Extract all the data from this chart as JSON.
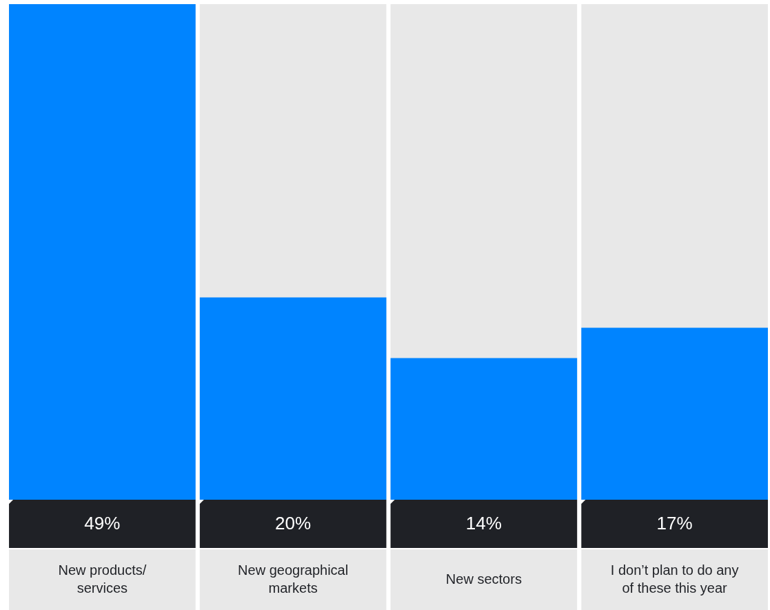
{
  "chart_data": {
    "type": "bar",
    "categories": [
      "New products/ services",
      "New geographical markets",
      "New sectors",
      "I don’t plan to do any of these this year"
    ],
    "values": [
      49,
      20,
      14,
      17
    ],
    "value_labels": [
      "49%",
      "20%",
      "14%",
      "17%"
    ],
    "color": "#0084ff"
  }
}
